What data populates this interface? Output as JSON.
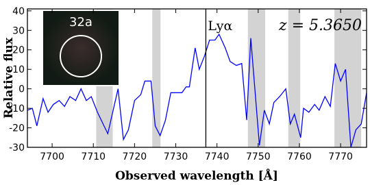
{
  "chart_data": {
    "type": "line",
    "xlabel": "Observed wavelength [Å]",
    "ylabel": "Relative flux",
    "annotation": "z = 5.3650",
    "inset_label": "32a",
    "vline": {
      "value": 7737.3,
      "label": "Lyα"
    },
    "shaded_regions": [
      [
        7710.7,
        7714.7
      ],
      [
        7724.3,
        7726.3
      ],
      [
        7747.5,
        7751.7
      ],
      [
        7757.3,
        7760.2
      ],
      [
        7768.5,
        7775
      ]
    ],
    "x": [
      7694,
      7695.2,
      7696.3,
      7697.8,
      7699,
      7700.3,
      7701.7,
      7703,
      7704.3,
      7705.7,
      7707,
      7708.3,
      7709.5,
      7711,
      7713.5,
      7716,
      7717.3,
      7718.5,
      7720,
      7721.5,
      7722.5,
      7724,
      7725,
      7726.2,
      7727.5,
      7728.8,
      7730,
      7731.5,
      7732.5,
      7733.3,
      7734.7,
      7735.7,
      7737,
      7738.2,
      7739.5,
      7740.5,
      7742,
      7743.2,
      7744.7,
      7746,
      7747.2,
      7748.2,
      7750.3,
      7751.5,
      7752.7,
      7753.8,
      7755.2,
      7756.7,
      7757.8,
      7758.8,
      7760.3,
      7761,
      7762.3,
      7763.7,
      7764.8,
      7766.2,
      7767.5,
      7768.7,
      7770,
      7771.2,
      7772.5,
      7773.7,
      7775,
      7776.3
    ],
    "values": [
      -11,
      -10,
      -19,
      -5,
      -12,
      -8,
      -6,
      -9,
      -4,
      -6,
      0,
      -6,
      -4,
      -12,
      -23,
      0,
      -26,
      -21,
      -6,
      -3,
      4,
      4,
      -19,
      -24,
      -16,
      -2,
      -2,
      -2,
      1,
      1,
      21,
      10,
      17,
      25,
      25,
      28,
      21,
      14,
      12,
      13,
      -16,
      26,
      -29,
      -11,
      -18,
      -7,
      -4,
      0,
      -18,
      -13,
      -25,
      -10,
      -12,
      -8,
      -11,
      -4,
      -9,
      13,
      4,
      10,
      -30,
      -21,
      -18,
      -2
    ],
    "color": "#0000ff",
    "xlim": [
      7694,
      7776.3
    ],
    "xticks": [
      7700,
      7710,
      7720,
      7730,
      7740,
      7750,
      7760,
      7770
    ],
    "ylim": [
      -30,
      41
    ],
    "yticks": [
      -30,
      -20,
      -10,
      0,
      10,
      20,
      30,
      40
    ]
  }
}
